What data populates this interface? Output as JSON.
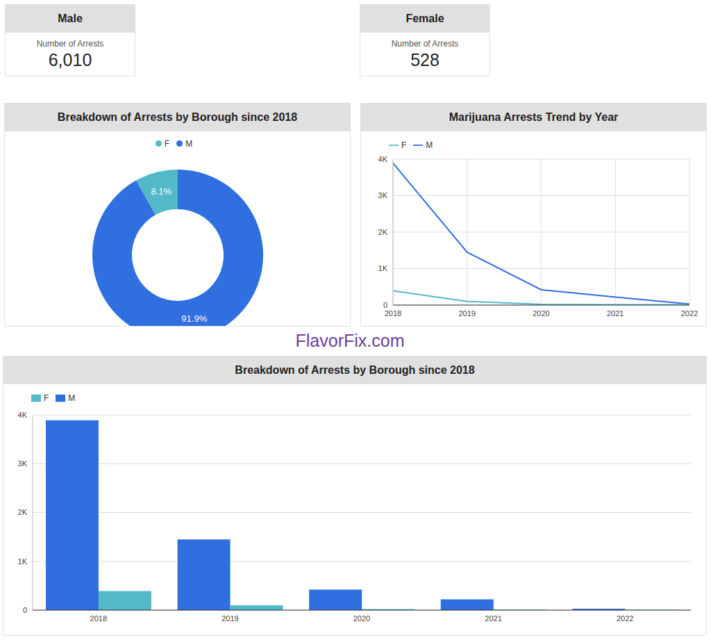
{
  "cards": [
    {
      "title": "Male",
      "label": "Number of Arrests",
      "value": "6,010"
    },
    {
      "title": "Female",
      "label": "Number of Arrests",
      "value": "528"
    }
  ],
  "watermark": "FlavorFix.com",
  "chart_data": [
    {
      "type": "pie",
      "title": "Breakdown of Arrests by Borough since 2018",
      "categories": [
        "M",
        "F"
      ],
      "values": [
        91.9,
        8.1
      ],
      "value_labels": [
        "91.9%",
        "8.1%"
      ],
      "colors": [
        "#2f6fe0",
        "#52b9c9"
      ],
      "data_labels": true,
      "legend": "top"
    },
    {
      "type": "line",
      "title": "Marijuana Arrests Trend by Year",
      "x": [
        2018,
        2019,
        2020,
        2021,
        2022
      ],
      "xlim": [
        2018,
        2022
      ],
      "xticks": [
        2018,
        2019,
        2020,
        2021,
        2022
      ],
      "series": [
        {
          "name": "M",
          "color": "#2f6fe0",
          "values": [
            3890,
            1450,
            420,
            220,
            30
          ]
        },
        {
          "name": "F",
          "color": "#52b9c9",
          "values": [
            390,
            100,
            20,
            10,
            8
          ]
        }
      ],
      "ylim": [
        0,
        4000
      ],
      "yticks": [
        0,
        {
          "value": 1000,
          "label": "1K"
        },
        {
          "value": 2000,
          "label": "2K"
        },
        {
          "value": 3000,
          "label": "3K"
        },
        {
          "value": 4000,
          "label": "4K"
        }
      ],
      "grid": true,
      "legend": "top-left"
    },
    {
      "type": "bar",
      "title": "Breakdown of Arrests by Borough since 2018",
      "categories": [
        "2018",
        "2019",
        "2020",
        "2021",
        "2022"
      ],
      "series": [
        {
          "name": "M",
          "color": "#2f6fe0",
          "values": [
            3890,
            1450,
            420,
            220,
            30
          ]
        },
        {
          "name": "F",
          "color": "#52b9c9",
          "values": [
            390,
            100,
            20,
            10,
            8
          ]
        }
      ],
      "ylim": [
        0,
        4000
      ],
      "yticks": [
        0,
        {
          "value": 1000,
          "label": "1K"
        },
        {
          "value": 2000,
          "label": "2K"
        },
        {
          "value": 3000,
          "label": "3K"
        },
        {
          "value": 4000,
          "label": "4K"
        }
      ],
      "grid": true,
      "legend": "top-left"
    }
  ]
}
